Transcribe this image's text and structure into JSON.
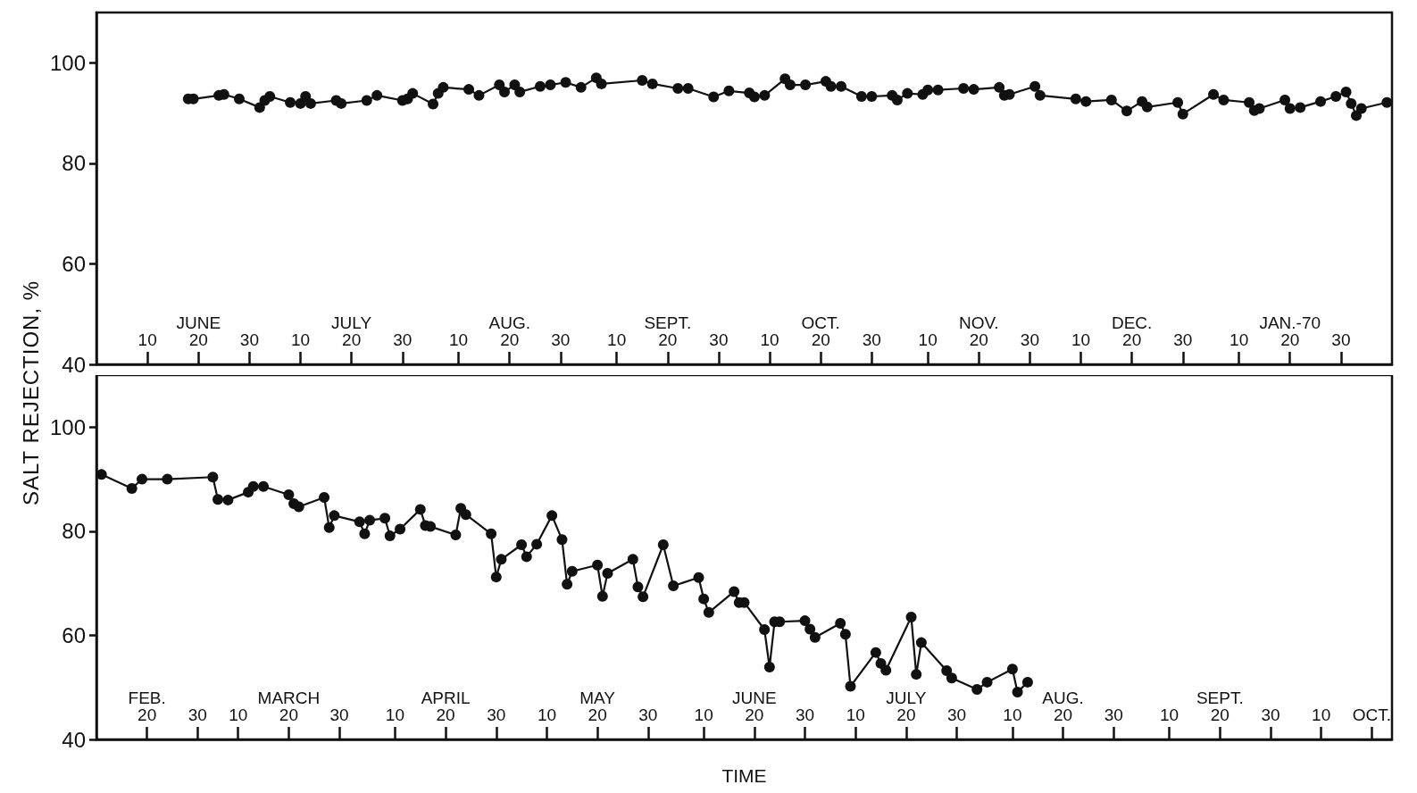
{
  "chart_data": [
    {
      "type": "line",
      "ylabel": "SALT REJECTION, %",
      "xlim": [
        "1969-05-31",
        "1970-02-09"
      ],
      "ylim": [
        40,
        110
      ],
      "yticks": [
        40,
        60,
        80,
        100
      ],
      "marker": "circle",
      "line_style": "solid",
      "xticks": [
        {
          "value": "1969-06-10",
          "label": "10"
        },
        {
          "value": "1969-06-20",
          "label": "JUNE\n20"
        },
        {
          "value": "1969-06-30",
          "label": "30"
        },
        {
          "value": "1969-07-10",
          "label": "10"
        },
        {
          "value": "1969-07-20",
          "label": "JULY\n20"
        },
        {
          "value": "1969-07-30",
          "label": "30"
        },
        {
          "value": "1969-08-10",
          "label": "10"
        },
        {
          "value": "1969-08-20",
          "label": "AUG.\n20"
        },
        {
          "value": "1969-08-30",
          "label": "30"
        },
        {
          "value": "1969-09-10",
          "label": "10"
        },
        {
          "value": "1969-09-20",
          "label": "SEPT.\n20"
        },
        {
          "value": "1969-09-30",
          "label": "30"
        },
        {
          "value": "1969-10-10",
          "label": "10"
        },
        {
          "value": "1969-10-20",
          "label": "OCT.\n20"
        },
        {
          "value": "1969-10-30",
          "label": "30"
        },
        {
          "value": "1969-11-10",
          "label": "10"
        },
        {
          "value": "1969-11-20",
          "label": "NOV.\n20"
        },
        {
          "value": "1969-11-30",
          "label": "30"
        },
        {
          "value": "1969-12-10",
          "label": "10"
        },
        {
          "value": "1969-12-20",
          "label": "DEC.\n20"
        },
        {
          "value": "1969-12-30",
          "label": "30"
        },
        {
          "value": "1970-01-10",
          "label": "10"
        },
        {
          "value": "1970-01-20",
          "label": "JAN.-70\n20"
        },
        {
          "value": "1970-01-30",
          "label": "30"
        }
      ],
      "series": [
        {
          "color": "#111111",
          "x": [
            "1969-06-18",
            "1969-06-19",
            "1969-06-24",
            "1969-06-25",
            "1969-06-28",
            "1969-07-02",
            "1969-07-03",
            "1969-07-04",
            "1969-07-08",
            "1969-07-10",
            "1969-07-11",
            "1969-07-12",
            "1969-07-17",
            "1969-07-18",
            "1969-07-23",
            "1969-07-25",
            "1969-07-30",
            "1969-07-31",
            "1969-08-01",
            "1969-08-05",
            "1969-08-06",
            "1969-08-07",
            "1969-08-12",
            "1969-08-14",
            "1969-08-18",
            "1969-08-19",
            "1969-08-21",
            "1969-08-22",
            "1969-08-26",
            "1969-08-28",
            "1969-08-31",
            "1969-09-03",
            "1969-09-06",
            "1969-09-07",
            "1969-09-15",
            "1969-09-17",
            "1969-09-22",
            "1969-09-24",
            "1969-09-29",
            "1969-10-02",
            "1969-10-06",
            "1969-10-07",
            "1969-10-09",
            "1969-10-13",
            "1969-10-14",
            "1969-10-17",
            "1969-10-21",
            "1969-10-22",
            "1969-10-24",
            "1969-10-28",
            "1969-10-30",
            "1969-11-03",
            "1969-11-04",
            "1969-11-06",
            "1969-11-09",
            "1969-11-10",
            "1969-11-12",
            "1969-11-17",
            "1969-11-19",
            "1969-11-24",
            "1969-11-25",
            "1969-11-26",
            "1969-12-01",
            "1969-12-02",
            "1969-12-09",
            "1969-12-11",
            "1969-12-16",
            "1969-12-19",
            "1969-12-22",
            "1969-12-23",
            "1969-12-29",
            "1969-12-30",
            "1970-01-05",
            "1970-01-07",
            "1970-01-12",
            "1970-01-13",
            "1970-01-14",
            "1970-01-19",
            "1970-01-20",
            "1970-01-22",
            "1970-01-26",
            "1970-01-29",
            "1970-01-31",
            "1970-02-01",
            "1970-02-02",
            "1970-02-03",
            "1970-02-08"
          ],
          "values": [
            92.8,
            92.8,
            93.5,
            93.7,
            92.8,
            91.1,
            92.5,
            93.3,
            92.1,
            91.9,
            93.3,
            91.9,
            92.5,
            91.9,
            92.5,
            93.5,
            92.5,
            92.8,
            93.9,
            91.8,
            93.9,
            95.1,
            94.7,
            93.5,
            95.6,
            94.2,
            95.6,
            94.2,
            95.3,
            95.6,
            96.1,
            95.1,
            97,
            95.8,
            96.5,
            95.8,
            94.9,
            94.9,
            93.2,
            94.4,
            94,
            93.2,
            93.5,
            96.8,
            95.6,
            95.6,
            96.3,
            95.3,
            95.3,
            93.3,
            93.3,
            93.5,
            92.6,
            93.9,
            93.7,
            94.6,
            94.6,
            94.9,
            94.7,
            95.1,
            93.5,
            93.7,
            95.3,
            93.5,
            92.8,
            92.3,
            92.6,
            90.4,
            92.3,
            91.2,
            92.1,
            89.8,
            93.7,
            92.6,
            92.1,
            90.5,
            90.9,
            92.6,
            90.9,
            91.1,
            92.3,
            93.3,
            94.2,
            91.9,
            89.5,
            90.9,
            92.1
          ]
        }
      ]
    },
    {
      "type": "line",
      "xlabel": "TIME",
      "xlim": [
        "--02-10",
        "--10-24"
      ],
      "ylim": [
        40,
        110
      ],
      "yticks": [
        40,
        60,
        80,
        100
      ],
      "marker": "circle",
      "line_style": "solid",
      "xticks": [
        {
          "value": "--02-20",
          "label": "FEB.\n20"
        },
        {
          "value": "--03-02",
          "label": "30"
        },
        {
          "value": "--03-10",
          "label": "10"
        },
        {
          "value": "--03-20",
          "label": "MARCH\n20"
        },
        {
          "value": "--03-30",
          "label": "30"
        },
        {
          "value": "--04-10",
          "label": "10"
        },
        {
          "value": "--04-20",
          "label": "APRIL\n20"
        },
        {
          "value": "--04-30",
          "label": "30"
        },
        {
          "value": "--05-10",
          "label": "10"
        },
        {
          "value": "--05-20",
          "label": "MAY\n20"
        },
        {
          "value": "--05-30",
          "label": "30"
        },
        {
          "value": "--06-10",
          "label": "10"
        },
        {
          "value": "--06-20",
          "label": "JUNE\n20"
        },
        {
          "value": "--06-30",
          "label": "30"
        },
        {
          "value": "--07-10",
          "label": "10"
        },
        {
          "value": "--07-20",
          "label": "JULY\n20"
        },
        {
          "value": "--07-30",
          "label": "30"
        },
        {
          "value": "--08-10",
          "label": "10"
        },
        {
          "value": "--08-20",
          "label": "AUG.\n20"
        },
        {
          "value": "--08-30",
          "label": "30"
        },
        {
          "value": "--09-10",
          "label": "10"
        },
        {
          "value": "--09-20",
          "label": "SEPT.\n20"
        },
        {
          "value": "--09-30",
          "label": "30"
        },
        {
          "value": "--10-10",
          "label": "10"
        },
        {
          "value": "--10-20",
          "label": "OCT."
        }
      ],
      "series": [
        {
          "color": "#111111",
          "x": [
            "--02-11",
            "--02-17",
            "--02-19",
            "--02-24",
            "--03-05",
            "--03-06",
            "--03-08",
            "--03-12",
            "--03-13",
            "--03-15",
            "--03-20",
            "--03-21",
            "--03-22",
            "--03-27",
            "--03-28",
            "--03-29",
            "--04-03",
            "--04-04",
            "--04-05",
            "--04-08",
            "--04-09",
            "--04-11",
            "--04-15",
            "--04-16",
            "--04-17",
            "--04-22",
            "--04-23",
            "--04-24",
            "--04-29",
            "--04-30",
            "--05-01",
            "--05-05",
            "--05-06",
            "--05-08",
            "--05-11",
            "--05-13",
            "--05-14",
            "--05-15",
            "--05-20",
            "--05-21",
            "--05-22",
            "--05-27",
            "--05-28",
            "--05-29",
            "--06-02",
            "--06-04",
            "--06-09",
            "--06-10",
            "--06-11",
            "--06-16",
            "--06-17",
            "--06-18",
            "--06-22",
            "--06-23",
            "--06-24",
            "--06-25",
            "--06-30",
            "--07-01",
            "--07-02",
            "--07-07",
            "--07-08",
            "--07-09",
            "--07-14",
            "--07-15",
            "--07-16",
            "--07-21",
            "--07-22",
            "--07-23",
            "--07-28",
            "--07-29",
            "--08-03",
            "--08-05",
            "--08-10",
            "--08-11",
            "--08-13"
          ],
          "values": [
            90.9,
            88.2,
            90,
            90,
            90.4,
            86.1,
            86,
            87.5,
            88.6,
            88.6,
            87,
            85.3,
            84.7,
            86.5,
            80.7,
            83,
            81.8,
            79.5,
            82.1,
            82.5,
            79.1,
            80.4,
            84.2,
            81.1,
            80.9,
            79.3,
            84.4,
            83.2,
            79.5,
            71.2,
            74.6,
            77.4,
            75.1,
            77.5,
            83,
            78.4,
            69.8,
            72.3,
            73.5,
            67.5,
            71.9,
            74.6,
            69.3,
            67.4,
            77.4,
            69.5,
            71.1,
            67,
            64.4,
            68.4,
            66.3,
            66.3,
            61.1,
            53.9,
            62.6,
            62.6,
            62.8,
            61.2,
            59.6,
            62.3,
            60.2,
            50.2,
            56.7,
            54.6,
            53.3,
            63.5,
            52.5,
            58.6,
            53.2,
            51.8,
            49.6,
            51,
            53.5,
            49.1,
            51
          ]
        }
      ]
    }
  ]
}
